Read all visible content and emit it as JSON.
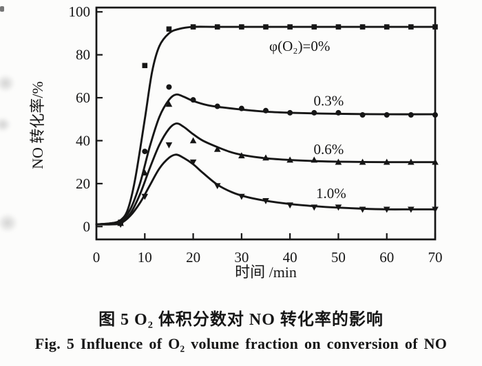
{
  "figure": {
    "caption_zh": "图 5  O₂ 体积分数对 NO 转化率的影响",
    "caption_en": "Fig. 5  Influence of O₂ volume fraction on conversion of NO"
  },
  "chart_data": {
    "type": "line",
    "title": "",
    "xlabel": "时间 /min",
    "ylabel": "NO 转化率/%",
    "xlim": [
      0,
      70
    ],
    "ylim": [
      0,
      100
    ],
    "xticks": [
      0,
      10,
      20,
      30,
      40,
      50,
      60,
      70
    ],
    "yticks": [
      0,
      20,
      40,
      60,
      80,
      100
    ],
    "grid": false,
    "legend_position": "inline-annotations",
    "ink_color": "#161616",
    "annotations": [
      {
        "text": "φ(O₂)=0%",
        "x": 42,
        "y": 84
      },
      {
        "text": "0.3%",
        "x": 48,
        "y": 58.5
      },
      {
        "text": "0.6%",
        "x": 48,
        "y": 36
      },
      {
        "text": "1.0%",
        "x": 48.5,
        "y": 15.5
      }
    ],
    "series": [
      {
        "name": "φ(O₂)=0%",
        "marker": "square",
        "points": [
          [
            5,
            2
          ],
          [
            10,
            75
          ],
          [
            15,
            92
          ],
          [
            20,
            93
          ],
          [
            25,
            93
          ],
          [
            30,
            93
          ],
          [
            35,
            93
          ],
          [
            40,
            93
          ],
          [
            45,
            93
          ],
          [
            50,
            93
          ],
          [
            55,
            93
          ],
          [
            60,
            93
          ],
          [
            65,
            93
          ],
          [
            70,
            93
          ]
        ],
        "curve": [
          [
            0,
            1
          ],
          [
            3,
            1.5
          ],
          [
            5,
            3
          ],
          [
            6.5,
            8
          ],
          [
            8,
            22
          ],
          [
            10,
            50
          ],
          [
            11.5,
            72
          ],
          [
            13,
            84
          ],
          [
            15,
            90
          ],
          [
            17,
            92
          ],
          [
            20,
            93
          ],
          [
            25,
            93
          ],
          [
            35,
            93
          ],
          [
            50,
            93
          ],
          [
            70,
            93
          ]
        ]
      },
      {
        "name": "0.3%",
        "marker": "circle",
        "points": [
          [
            5,
            2
          ],
          [
            10,
            35
          ],
          [
            15,
            65
          ],
          [
            20,
            59
          ],
          [
            25,
            56
          ],
          [
            30,
            55
          ],
          [
            35,
            54
          ],
          [
            40,
            53
          ],
          [
            45,
            53
          ],
          [
            50,
            53
          ],
          [
            55,
            52
          ],
          [
            60,
            52
          ],
          [
            65,
            52
          ],
          [
            70,
            52
          ]
        ],
        "curve": [
          [
            0,
            1
          ],
          [
            3,
            1.5
          ],
          [
            5,
            2.5
          ],
          [
            7,
            8
          ],
          [
            9,
            20
          ],
          [
            11,
            37
          ],
          [
            13,
            51
          ],
          [
            15,
            59
          ],
          [
            16.5,
            61.5
          ],
          [
            18,
            60.5
          ],
          [
            20,
            58.5
          ],
          [
            23,
            56.5
          ],
          [
            26,
            55.5
          ],
          [
            30,
            54.5
          ],
          [
            35,
            53.5
          ],
          [
            40,
            53
          ],
          [
            45,
            52.7
          ],
          [
            50,
            52.5
          ],
          [
            60,
            52.3
          ],
          [
            70,
            52.3
          ]
        ]
      },
      {
        "name": "0.6%",
        "marker": "triangle-up",
        "points": [
          [
            5,
            1.5
          ],
          [
            10,
            25
          ],
          [
            15,
            57
          ],
          [
            20,
            40
          ],
          [
            25,
            36
          ],
          [
            30,
            33
          ],
          [
            35,
            32
          ],
          [
            40,
            31
          ],
          [
            45,
            31
          ],
          [
            50,
            30
          ],
          [
            55,
            30
          ],
          [
            60,
            30
          ],
          [
            65,
            30
          ],
          [
            70,
            30
          ]
        ],
        "curve": [
          [
            0,
            1
          ],
          [
            3,
            1.2
          ],
          [
            5,
            2
          ],
          [
            7,
            6
          ],
          [
            9,
            15
          ],
          [
            11,
            27
          ],
          [
            13,
            38
          ],
          [
            15,
            45.5
          ],
          [
            16.5,
            48
          ],
          [
            18,
            46.5
          ],
          [
            20,
            43
          ],
          [
            22,
            40
          ],
          [
            25,
            37
          ],
          [
            28,
            34.5
          ],
          [
            31,
            33
          ],
          [
            35,
            31.8
          ],
          [
            40,
            31
          ],
          [
            45,
            30.5
          ],
          [
            50,
            30.2
          ],
          [
            60,
            30
          ],
          [
            70,
            30
          ]
        ]
      },
      {
        "name": "1.0%",
        "marker": "triangle-down",
        "points": [
          [
            5,
            1
          ],
          [
            10,
            14
          ],
          [
            15,
            38
          ],
          [
            20,
            30
          ],
          [
            25,
            19
          ],
          [
            30,
            14
          ],
          [
            35,
            12
          ],
          [
            40,
            10
          ],
          [
            45,
            9
          ],
          [
            50,
            9
          ],
          [
            55,
            8
          ],
          [
            60,
            8
          ],
          [
            65,
            8
          ],
          [
            70,
            8
          ]
        ],
        "curve": [
          [
            0,
            1
          ],
          [
            3,
            1
          ],
          [
            5,
            1.5
          ],
          [
            7,
            5
          ],
          [
            9,
            11
          ],
          [
            11,
            19
          ],
          [
            13,
            27
          ],
          [
            15,
            32
          ],
          [
            16.5,
            33.5
          ],
          [
            18,
            32
          ],
          [
            20,
            29
          ],
          [
            22,
            25
          ],
          [
            25,
            19.5
          ],
          [
            28,
            16
          ],
          [
            31,
            13.8
          ],
          [
            35,
            12
          ],
          [
            40,
            10.5
          ],
          [
            45,
            9.5
          ],
          [
            50,
            8.8
          ],
          [
            55,
            8.3
          ],
          [
            60,
            8
          ],
          [
            65,
            8
          ],
          [
            70,
            8
          ]
        ]
      }
    ]
  }
}
